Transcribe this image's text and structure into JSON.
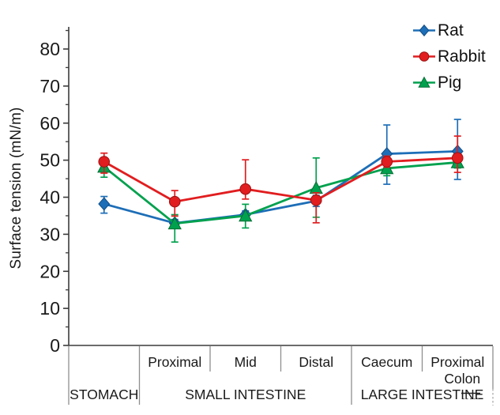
{
  "chart_data": {
    "type": "line",
    "title": "",
    "ylabel": "Surface tension (mN/m)",
    "ylim": [
      0,
      85
    ],
    "yticks": [
      0,
      10,
      20,
      30,
      40,
      50,
      60,
      70,
      80
    ],
    "minor_tick_step": 5,
    "grid": false,
    "legend_position": "top-right",
    "categories": [
      "",
      "Proximal",
      "Mid",
      "Distal",
      "Caecum",
      "Proximal\nColon"
    ],
    "groups": [
      {
        "label": "STOMACH",
        "start": 0,
        "end": 1
      },
      {
        "label": "SMALL INTESTINE",
        "start": 1,
        "end": 4
      },
      {
        "label": "LARGE INTESTINE",
        "start": 4,
        "end": 6
      }
    ],
    "series": [
      {
        "name": "Rat",
        "marker": "diamond",
        "color": "#1d6eb7",
        "edge_color": "#114e86",
        "values": [
          38.2,
          33.0,
          35.3,
          39.0,
          51.7,
          52.4
        ],
        "err_plus": [
          2.0,
          1.0,
          1.0,
          1.5,
          7.8,
          8.6
        ],
        "err_minus": [
          2.5,
          1.0,
          1.0,
          1.5,
          8.2,
          7.6
        ]
      },
      {
        "name": "Rabbit",
        "marker": "circle",
        "color": "#e11d1f",
        "edge_color": "#9c1113",
        "values": [
          49.6,
          38.8,
          42.2,
          39.2,
          49.6,
          50.6
        ],
        "err_plus": [
          2.3,
          3.0,
          7.9,
          2.0,
          1.5,
          5.9
        ],
        "err_minus": [
          3.1,
          3.9,
          2.7,
          6.1,
          1.5,
          3.9
        ]
      },
      {
        "name": "Pig",
        "marker": "triangle",
        "color": "#00a14e",
        "edge_color": "#006e33",
        "values": [
          48.2,
          32.9,
          35.0,
          42.5,
          47.8,
          49.4
        ],
        "err_plus": [
          1.5,
          2.4,
          3.1,
          8.1,
          1.5,
          1.5
        ],
        "err_minus": [
          2.8,
          5.0,
          3.3,
          7.9,
          2.0,
          1.5
        ]
      }
    ],
    "draw_order": [
      0,
      2,
      1
    ]
  }
}
